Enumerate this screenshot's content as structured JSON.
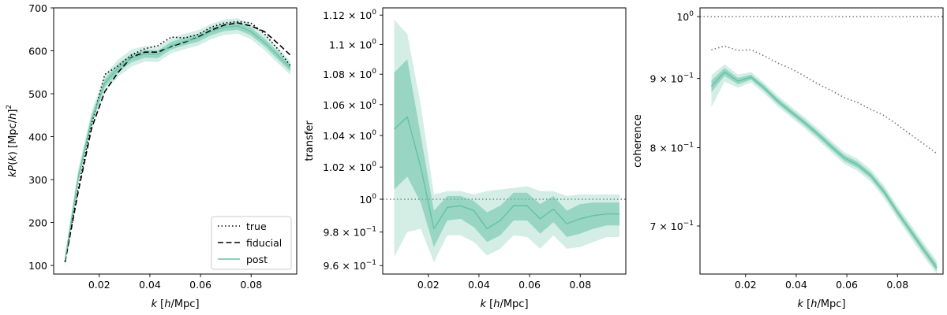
{
  "figure": {
    "background": "#ffffff",
    "band_color": "#66c2a5",
    "line_color": "#66c2a5"
  },
  "chart_data": [
    {
      "type": "line",
      "xlabel": "k [h/Mpc]",
      "ylabel": "kP(k) [Mpc/h]²",
      "xlim": [
        0.002,
        0.098
      ],
      "ylim": [
        80,
        700
      ],
      "yscale": "linear",
      "x_ticks": [
        0.02,
        0.04,
        0.06,
        0.08
      ],
      "x_tick_labels": [
        "0.02",
        "0.04",
        "0.06",
        "0.08"
      ],
      "y_ticks": [
        100,
        200,
        300,
        400,
        500,
        600,
        700
      ],
      "y_tick_labels": [
        "100",
        "200",
        "300",
        "400",
        "500",
        "600",
        "700"
      ],
      "legend": {
        "placement": "lower-right",
        "entries": [
          {
            "label": "true",
            "style": "dotted",
            "color": "#000000"
          },
          {
            "label": "fiducial",
            "style": "dashed",
            "color": "#000000"
          },
          {
            "label": "post",
            "style": "solid",
            "color": "#66c2a5"
          }
        ]
      },
      "x": [
        0.0065,
        0.0117,
        0.017,
        0.0222,
        0.0275,
        0.0327,
        0.038,
        0.0432,
        0.0484,
        0.0537,
        0.059,
        0.0642,
        0.0694,
        0.0747,
        0.0799,
        0.0852,
        0.0904,
        0.0955
      ],
      "series": [
        {
          "name": "true",
          "style": "dotted",
          "color": "#000000",
          "values": [
            110,
            280,
            430,
            545,
            565,
            590,
            605,
            612,
            632,
            630,
            638,
            655,
            665,
            668,
            665,
            640,
            605,
            565
          ]
        },
        {
          "name": "fiducial",
          "style": "dashed",
          "color": "#000000",
          "values": [
            108,
            272,
            420,
            505,
            550,
            585,
            597,
            597,
            610,
            620,
            632,
            648,
            660,
            665,
            658,
            645,
            618,
            590
          ]
        },
        {
          "name": "post",
          "style": "solid",
          "color": "#66c2a5",
          "values": [
            112,
            305,
            440,
            525,
            560,
            583,
            593,
            592,
            612,
            622,
            630,
            645,
            655,
            658,
            645,
            620,
            590,
            560
          ],
          "band_inner": {
            "lower": [
              104,
              295,
              430,
              515,
              550,
              573,
              584,
              583,
              603,
              613,
              621,
              636,
              646,
              649,
              636,
              611,
              581,
              552
            ],
            "upper": [
              120,
              315,
              450,
              535,
              570,
              593,
              602,
              601,
              621,
              631,
              639,
              654,
              664,
              667,
              654,
              629,
              599,
              568
            ]
          },
          "band_outer": {
            "lower": [
              96,
              285,
              420,
              505,
              540,
              563,
              575,
              574,
              594,
              604,
              612,
              627,
              637,
              640,
              627,
              602,
              572,
              544
            ],
            "upper": [
              128,
              325,
              460,
              545,
              580,
              603,
              611,
              610,
              630,
              640,
              648,
              663,
              673,
              676,
              663,
              638,
              608,
              576
            ]
          }
        }
      ]
    },
    {
      "type": "line",
      "xlabel": "k [h/Mpc]",
      "ylabel": "transfer",
      "xlim": [
        0.002,
        0.098
      ],
      "ylim": [
        0.955,
        1.125
      ],
      "yscale": "log",
      "x_ticks": [
        0.02,
        0.04,
        0.06,
        0.08
      ],
      "x_tick_labels": [
        "0.02",
        "0.04",
        "0.06",
        "0.08"
      ],
      "y_ticks": [
        0.96,
        0.98,
        1.0,
        1.02,
        1.04,
        1.06,
        1.08,
        1.1,
        1.12
      ],
      "y_tick_labels": [
        [
          "9.6",
          "−1"
        ],
        [
          "9.8",
          "−1"
        ],
        [
          "",
          "0"
        ],
        [
          "1.02",
          "0"
        ],
        [
          "1.04",
          "0"
        ],
        [
          "1.06",
          "0"
        ],
        [
          "1.08",
          "0"
        ],
        [
          "1.1",
          "0"
        ],
        [
          "1.12",
          "0"
        ]
      ],
      "reference_line": {
        "y": 1.0,
        "style": "dotted",
        "color": "#777777"
      },
      "x": [
        0.0065,
        0.0117,
        0.017,
        0.0222,
        0.0275,
        0.0327,
        0.038,
        0.0432,
        0.0484,
        0.0537,
        0.059,
        0.0642,
        0.0694,
        0.0747,
        0.0799,
        0.0852,
        0.0904,
        0.0955
      ],
      "series": [
        {
          "name": "post",
          "style": "solid",
          "color": "#66c2a5",
          "values": [
            1.044,
            1.052,
            1.02,
            0.982,
            0.995,
            0.996,
            0.993,
            0.982,
            0.987,
            0.996,
            0.996,
            0.988,
            0.994,
            0.985,
            0.988,
            0.99,
            0.991,
            0.991
          ],
          "band_inner": {
            "lower": [
              1.006,
              1.014,
              0.998,
              0.971,
              0.987,
              0.988,
              0.983,
              0.974,
              0.978,
              0.987,
              0.987,
              0.979,
              0.986,
              0.977,
              0.979,
              0.982,
              0.984,
              0.984
            ],
            "upper": [
              1.081,
              1.09,
              1.04,
              0.993,
              1.002,
              1.002,
              0.999,
              0.992,
              0.996,
              1.004,
              1.004,
              0.997,
              1.002,
              0.993,
              0.997,
              0.998,
              0.998,
              0.998
            ]
          },
          "band_outer": {
            "lower": [
              0.965,
              0.98,
              0.982,
              0.962,
              0.978,
              0.978,
              0.974,
              0.966,
              0.97,
              0.978,
              0.977,
              0.97,
              0.978,
              0.97,
              0.971,
              0.974,
              0.977,
              0.977
            ],
            "upper": [
              1.117,
              1.107,
              1.06,
              1.003,
              1.005,
              1.005,
              1.003,
              1.005,
              1.006,
              1.007,
              1.008,
              1.005,
              1.005,
              1.002,
              1.003,
              1.003,
              1.003,
              1.003
            ]
          }
        }
      ]
    },
    {
      "type": "line",
      "xlabel": "k [h/Mpc]",
      "ylabel": "coherence",
      "xlim": [
        0.002,
        0.098
      ],
      "ylim": [
        0.645,
        1.015
      ],
      "yscale": "log",
      "x_ticks": [
        0.02,
        0.04,
        0.06,
        0.08
      ],
      "x_tick_labels": [
        "0.02",
        "0.04",
        "0.06",
        "0.08"
      ],
      "y_ticks": [
        0.7,
        0.8,
        0.9,
        1.0
      ],
      "y_tick_labels": [
        [
          "7 × 10",
          "−1"
        ],
        [
          "8 × 10",
          "−1"
        ],
        [
          "9 × 10",
          "−1"
        ],
        [
          "10",
          "0"
        ]
      ],
      "reference_line": {
        "y": 1.0,
        "style": "dotted",
        "color": "#777777"
      },
      "x": [
        0.0065,
        0.0117,
        0.017,
        0.0222,
        0.0275,
        0.0327,
        0.038,
        0.0432,
        0.0484,
        0.0537,
        0.059,
        0.0642,
        0.0694,
        0.0747,
        0.0799,
        0.0852,
        0.0904,
        0.0955
      ],
      "series": [
        {
          "name": "",
          "style": "dotted",
          "color": "#777777",
          "values": [
            0.945,
            0.951,
            0.944,
            0.945,
            0.935,
            0.924,
            0.915,
            0.904,
            0.892,
            0.882,
            0.871,
            0.864,
            0.854,
            0.845,
            0.832,
            0.818,
            0.805,
            0.792
          ]
        },
        {
          "name": "",
          "style": "solid",
          "color": "#66c2a5",
          "values": [
            0.888,
            0.91,
            0.896,
            0.902,
            0.885,
            0.866,
            0.85,
            0.835,
            0.819,
            0.802,
            0.786,
            0.777,
            0.763,
            0.742,
            0.717,
            0.694,
            0.672,
            0.652
          ],
          "band_inner": {
            "lower": [
              0.879,
              0.904,
              0.891,
              0.898,
              0.881,
              0.862,
              0.846,
              0.831,
              0.815,
              0.798,
              0.782,
              0.773,
              0.759,
              0.738,
              0.713,
              0.69,
              0.668,
              0.648
            ],
            "upper": [
              0.897,
              0.916,
              0.901,
              0.906,
              0.889,
              0.87,
              0.854,
              0.839,
              0.823,
              0.806,
              0.79,
              0.781,
              0.767,
              0.746,
              0.721,
              0.698,
              0.676,
              0.656
            ]
          },
          "band_outer": {
            "lower": [
              0.857,
              0.895,
              0.886,
              0.894,
              0.877,
              0.858,
              0.842,
              0.827,
              0.811,
              0.794,
              0.778,
              0.769,
              0.755,
              0.734,
              0.709,
              0.686,
              0.664,
              0.645
            ],
            "upper": [
              0.905,
              0.922,
              0.906,
              0.91,
              0.893,
              0.874,
              0.858,
              0.843,
              0.827,
              0.81,
              0.794,
              0.785,
              0.771,
              0.75,
              0.725,
              0.702,
              0.68,
              0.66
            ]
          }
        }
      ]
    }
  ]
}
